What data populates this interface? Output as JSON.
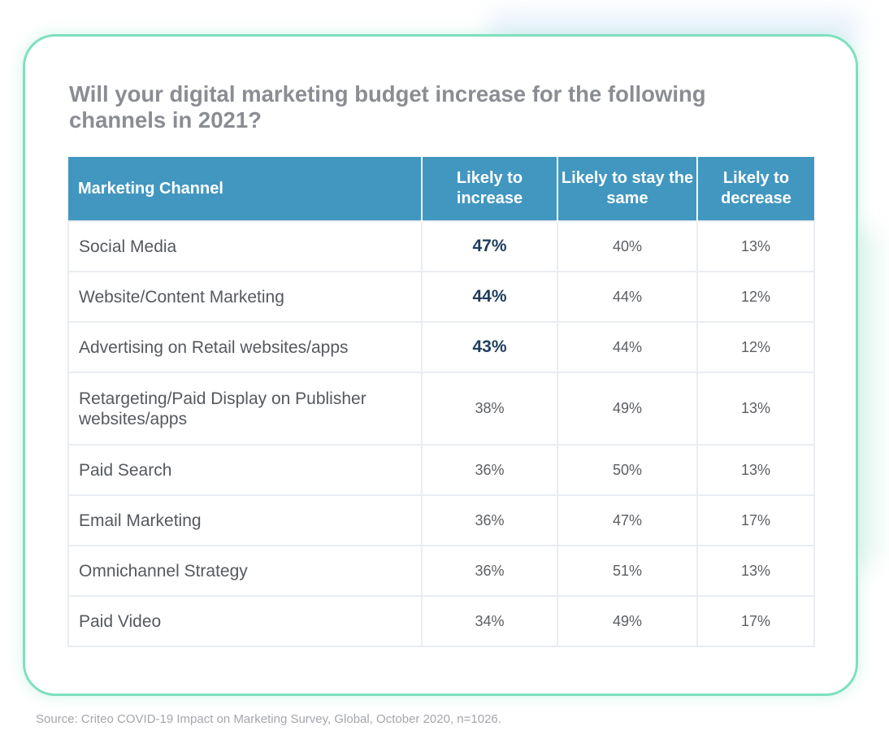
{
  "title": "Will your digital marketing budget increase for the following channels in 2021?",
  "source": "Source: Criteo COVID-19 Impact on Marketing Survey, Global, October 2020, n=1026.",
  "colors": {
    "header_bg": "#4297c0",
    "card_border": "#7ee0bd",
    "highlight_text": "#1d3d5e",
    "title_text": "#8a8d93"
  },
  "chart_data": {
    "type": "table",
    "title": "Will your digital marketing budget increase for the following channels in 2021?",
    "columns": [
      "Marketing Channel",
      "Likely to increase",
      "Likely to stay the same",
      "Likely to decrease"
    ],
    "rows": [
      {
        "channel": "Social Media",
        "increase": "47%",
        "same": "40%",
        "decrease": "13%",
        "highlight": true
      },
      {
        "channel": "Website/Content Marketing",
        "increase": "44%",
        "same": "44%",
        "decrease": "12%",
        "highlight": true
      },
      {
        "channel": "Advertising on Retail websites/apps",
        "increase": "43%",
        "same": "44%",
        "decrease": "12%",
        "highlight": true
      },
      {
        "channel": "Retargeting/Paid Display on Publisher websites/apps",
        "increase": "38%",
        "same": "49%",
        "decrease": "13%",
        "highlight": false
      },
      {
        "channel": "Paid Search",
        "increase": "36%",
        "same": "50%",
        "decrease": "13%",
        "highlight": false
      },
      {
        "channel": "Email Marketing",
        "increase": "36%",
        "same": "47%",
        "decrease": "17%",
        "highlight": false
      },
      {
        "channel": "Omnichannel Strategy",
        "increase": "36%",
        "same": "51%",
        "decrease": "13%",
        "highlight": false
      },
      {
        "channel": "Paid Video",
        "increase": "34%",
        "same": "49%",
        "decrease": "17%",
        "highlight": false
      }
    ]
  }
}
